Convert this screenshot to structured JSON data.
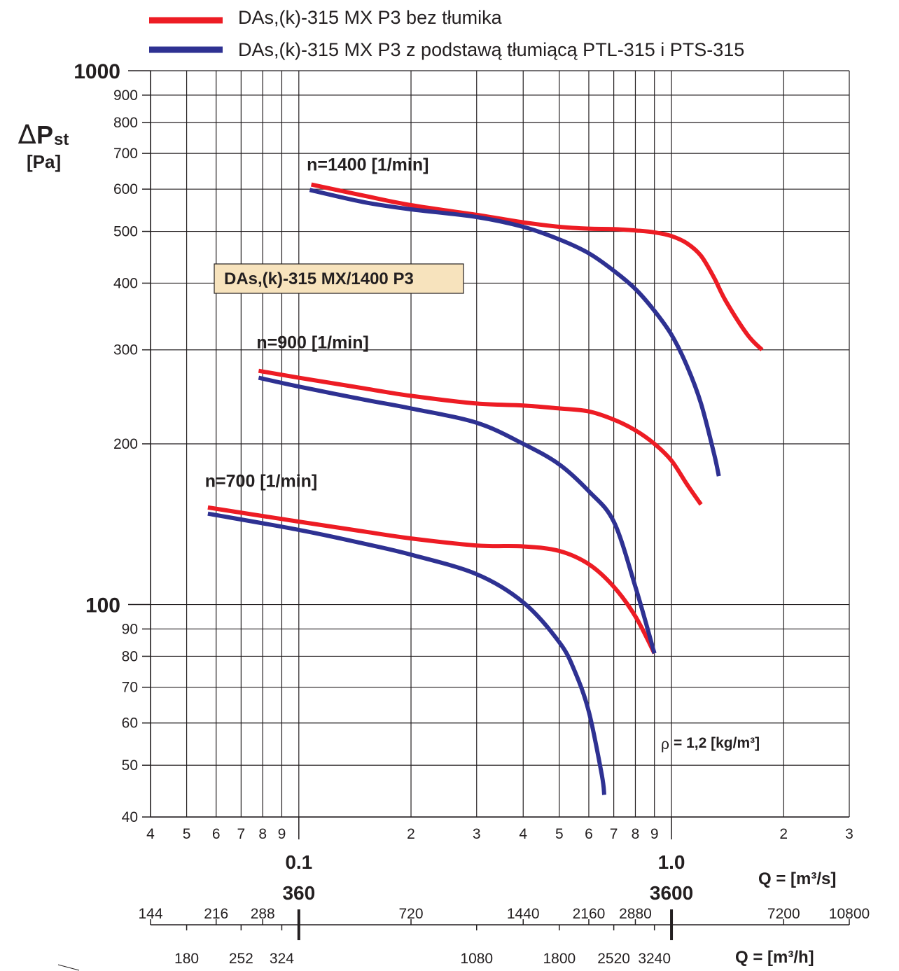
{
  "chart_data": {
    "type": "line",
    "title": "",
    "model_box": "DAs,(k)-315 MX/1400 P3",
    "xscale": "log",
    "yscale": "log",
    "xlim": [
      0.04,
      3
    ],
    "ylim": [
      40,
      1000
    ],
    "grid": true,
    "legend_placement": "top",
    "ylabel": {
      "delta": "∆",
      "symbol": "P",
      "subscript": "st",
      "unit": "[Pa]"
    },
    "x_unit_label": "Q = [m³/s]",
    "x_unit_m3h_label": "Q = [m³/h]",
    "density_note": {
      "symbol": "ρ",
      "text": "= 1,2 [kg/m³]"
    },
    "y_ticks": [
      {
        "value": 1000,
        "label": "1000",
        "major": true
      },
      {
        "value": 900,
        "label": "900"
      },
      {
        "value": 800,
        "label": "800"
      },
      {
        "value": 700,
        "label": "700"
      },
      {
        "value": 600,
        "label": "600"
      },
      {
        "value": 500,
        "label": "500"
      },
      {
        "value": 400,
        "label": "400"
      },
      {
        "value": 300,
        "label": "300"
      },
      {
        "value": 200,
        "label": "200"
      },
      {
        "value": 100,
        "label": "100",
        "major": true
      },
      {
        "value": 90,
        "label": "90"
      },
      {
        "value": 80,
        "label": "80"
      },
      {
        "value": 70,
        "label": "70"
      },
      {
        "value": 60,
        "label": "60"
      },
      {
        "value": 50,
        "label": "50"
      },
      {
        "value": 40,
        "label": "40"
      }
    ],
    "x_ticks": [
      {
        "value": 0.04,
        "label": "4"
      },
      {
        "value": 0.05,
        "label": "5"
      },
      {
        "value": 0.06,
        "label": "6"
      },
      {
        "value": 0.07,
        "label": "7"
      },
      {
        "value": 0.08,
        "label": "8"
      },
      {
        "value": 0.09,
        "label": "9"
      },
      {
        "value": 0.1,
        "label": ""
      },
      {
        "value": 0.2,
        "label": "2"
      },
      {
        "value": 0.3,
        "label": "3"
      },
      {
        "value": 0.4,
        "label": "4"
      },
      {
        "value": 0.5,
        "label": "5"
      },
      {
        "value": 0.6,
        "label": "6"
      },
      {
        "value": 0.7,
        "label": "7"
      },
      {
        "value": 0.8,
        "label": "8"
      },
      {
        "value": 0.9,
        "label": "9"
      },
      {
        "value": 1.0,
        "label": ""
      },
      {
        "value": 2.0,
        "label": "2"
      },
      {
        "value": 3.0,
        "label": "3"
      }
    ],
    "x_decades": [
      {
        "value": 0.1,
        "label": "0.1",
        "m3h": "360"
      },
      {
        "value": 1.0,
        "label": "1.0",
        "m3h": "3600"
      }
    ],
    "m3h_ticks_top": [
      {
        "value": 144,
        "label": "144"
      },
      {
        "value": 216,
        "label": "216"
      },
      {
        "value": 288,
        "label": "288"
      },
      {
        "value": 720,
        "label": "720"
      },
      {
        "value": 1440,
        "label": "1440"
      },
      {
        "value": 2160,
        "label": "2160"
      },
      {
        "value": 2880,
        "label": "2880"
      },
      {
        "value": 7200,
        "label": "7200"
      },
      {
        "value": 10800,
        "label": "10800"
      }
    ],
    "m3h_ticks_bottom": [
      {
        "value": 180,
        "label": "180"
      },
      {
        "value": 252,
        "label": "252"
      },
      {
        "value": 324,
        "label": "324"
      },
      {
        "value": 1080,
        "label": "1080"
      },
      {
        "value": 1800,
        "label": "1800"
      },
      {
        "value": 2520,
        "label": "2520"
      },
      {
        "value": 3240,
        "label": "3240"
      }
    ],
    "speed_labels": [
      {
        "text": "n=1400 [1/min]",
        "x": 0.105,
        "y": 650
      },
      {
        "text": "n=900 [1/min]",
        "x": 0.077,
        "y": 302
      },
      {
        "text": "n=700 [1/min]",
        "x": 0.056,
        "y": 166
      }
    ],
    "series": [
      {
        "name": "DAs,(k)-315 MX P3 bez tłumika",
        "color": "#ed1c24",
        "curves": [
          {
            "speed": "n=1400 [1/min]",
            "points": [
              [
                0.108,
                612
              ],
              [
                0.15,
                583
              ],
              [
                0.2,
                560
              ],
              [
                0.3,
                537
              ],
              [
                0.4,
                520
              ],
              [
                0.5,
                510
              ],
              [
                0.6,
                506
              ],
              [
                0.7,
                505
              ],
              [
                0.8,
                502
              ],
              [
                0.9,
                498
              ],
              [
                1.0,
                490
              ],
              [
                1.1,
                475
              ],
              [
                1.2,
                450
              ],
              [
                1.3,
                410
              ],
              [
                1.4,
                370
              ],
              [
                1.6,
                320
              ],
              [
                1.75,
                300
              ]
            ]
          },
          {
            "speed": "n=900 [1/min]",
            "points": [
              [
                0.078,
                274
              ],
              [
                0.1,
                266
              ],
              [
                0.15,
                254
              ],
              [
                0.2,
                246
              ],
              [
                0.3,
                238
              ],
              [
                0.4,
                236
              ],
              [
                0.5,
                233
              ],
              [
                0.6,
                230
              ],
              [
                0.7,
                222
              ],
              [
                0.8,
                212
              ],
              [
                0.9,
                200
              ],
              [
                1.0,
                186
              ],
              [
                1.1,
                168
              ],
              [
                1.2,
                154
              ]
            ]
          },
          {
            "speed": "n=700 [1/min]",
            "points": [
              [
                0.057,
                152
              ],
              [
                0.1,
                143
              ],
              [
                0.15,
                137
              ],
              [
                0.2,
                133
              ],
              [
                0.3,
                129
              ],
              [
                0.4,
                128.5
              ],
              [
                0.5,
                126
              ],
              [
                0.6,
                119
              ],
              [
                0.7,
                108
              ],
              [
                0.8,
                95
              ],
              [
                0.9,
                81
              ]
            ]
          }
        ]
      },
      {
        "name": "DAs,(k)-315 MX P3 z podstawą tłumiącą PTL-315 i PTS-315",
        "color": "#2e3192",
        "curves": [
          {
            "speed": "n=1400 [1/min]",
            "points": [
              [
                0.107,
                598
              ],
              [
                0.15,
                567
              ],
              [
                0.2,
                550
              ],
              [
                0.3,
                532
              ],
              [
                0.4,
                510
              ],
              [
                0.5,
                483
              ],
              [
                0.6,
                455
              ],
              [
                0.7,
                422
              ],
              [
                0.8,
                390
              ],
              [
                0.9,
                355
              ],
              [
                1.0,
                320
              ],
              [
                1.1,
                280
              ],
              [
                1.2,
                238
              ],
              [
                1.3,
                192
              ],
              [
                1.34,
                174
              ]
            ]
          },
          {
            "speed": "n=900 [1/min]",
            "points": [
              [
                0.078,
                266
              ],
              [
                0.1,
                256
              ],
              [
                0.15,
                242
              ],
              [
                0.2,
                233
              ],
              [
                0.3,
                219
              ],
              [
                0.4,
                200
              ],
              [
                0.5,
                183
              ],
              [
                0.6,
                163
              ],
              [
                0.7,
                143
              ],
              [
                0.8,
                108
              ],
              [
                0.9,
                81
              ]
            ]
          },
          {
            "speed": "n=700 [1/min]",
            "points": [
              [
                0.057,
                148
              ],
              [
                0.1,
                138
              ],
              [
                0.15,
                130
              ],
              [
                0.2,
                124
              ],
              [
                0.3,
                114
              ],
              [
                0.4,
                101
              ],
              [
                0.5,
                85
              ],
              [
                0.55,
                75
              ],
              [
                0.6,
                63
              ],
              [
                0.65,
                48
              ],
              [
                0.66,
                44
              ]
            ]
          }
        ]
      }
    ]
  }
}
